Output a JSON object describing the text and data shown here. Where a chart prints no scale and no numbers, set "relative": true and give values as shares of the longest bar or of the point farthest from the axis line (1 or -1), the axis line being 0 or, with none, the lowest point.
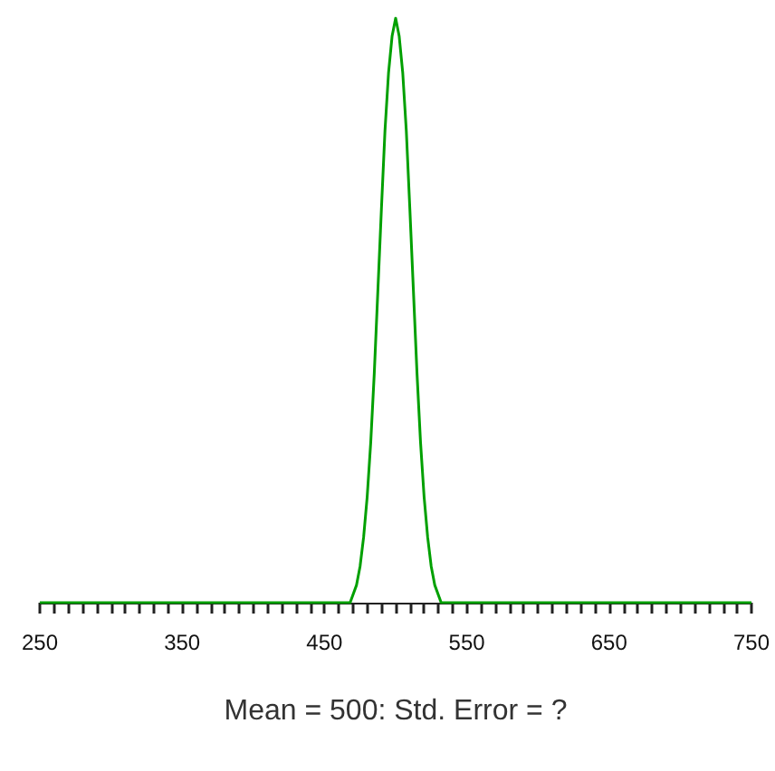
{
  "chart_data": {
    "type": "line",
    "relative": true,
    "xlabel": "Mean = 500: Std. Error = ?",
    "x": [
      250,
      468,
      472.5,
      475,
      477.5,
      480,
      482.5,
      485,
      487.5,
      490,
      492.5,
      495,
      497.5,
      500,
      502.5,
      505,
      507.5,
      510,
      512.5,
      515,
      517.5,
      520,
      522.5,
      525,
      527.5,
      532,
      750
    ],
    "series": [
      {
        "color": "#00a000",
        "values": [
          0,
          0,
          0.03,
          0.062,
          0.112,
          0.181,
          0.274,
          0.393,
          0.533,
          0.673,
          0.807,
          0.906,
          0.969,
          1,
          0.969,
          0.906,
          0.807,
          0.673,
          0.533,
          0.393,
          0.274,
          0.181,
          0.112,
          0.062,
          0.03,
          0,
          0
        ]
      }
    ],
    "xlim": [
      250,
      750
    ],
    "xticks": [
      250,
      {
        "value": 260,
        "label": null
      },
      {
        "value": 270,
        "label": null
      },
      {
        "value": 280,
        "label": null
      },
      {
        "value": 290,
        "label": null
      },
      {
        "value": 300,
        "label": null
      },
      {
        "value": 310,
        "label": null
      },
      {
        "value": 320,
        "label": null
      },
      {
        "value": 330,
        "label": null
      },
      {
        "value": 340,
        "label": null
      },
      350,
      {
        "value": 360,
        "label": null
      },
      {
        "value": 370,
        "label": null
      },
      {
        "value": 380,
        "label": null
      },
      {
        "value": 390,
        "label": null
      },
      {
        "value": 400,
        "label": null
      },
      {
        "value": 410,
        "label": null
      },
      {
        "value": 420,
        "label": null
      },
      {
        "value": 430,
        "label": null
      },
      {
        "value": 440,
        "label": null
      },
      450,
      {
        "value": 460,
        "label": null
      },
      {
        "value": 470,
        "label": null
      },
      {
        "value": 480,
        "label": null
      },
      {
        "value": 490,
        "label": null
      },
      {
        "value": 500,
        "label": null
      },
      {
        "value": 510,
        "label": null
      },
      {
        "value": 520,
        "label": null
      },
      {
        "value": 530,
        "label": null
      },
      {
        "value": 540,
        "label": null
      },
      550,
      {
        "value": 560,
        "label": null
      },
      {
        "value": 570,
        "label": null
      },
      {
        "value": 580,
        "label": null
      },
      {
        "value": 590,
        "label": null
      },
      {
        "value": 600,
        "label": null
      },
      {
        "value": 610,
        "label": null
      },
      {
        "value": 620,
        "label": null
      },
      {
        "value": 630,
        "label": null
      },
      {
        "value": 640,
        "label": null
      },
      650,
      {
        "value": 660,
        "label": null
      },
      {
        "value": 670,
        "label": null
      },
      {
        "value": 680,
        "label": null
      },
      {
        "value": 690,
        "label": null
      },
      {
        "value": 700,
        "label": null
      },
      {
        "value": 710,
        "label": null
      },
      {
        "value": 720,
        "label": null
      },
      {
        "value": 730,
        "label": null
      },
      {
        "value": 740,
        "label": null
      },
      750
    ],
    "grid": false,
    "marker": "none",
    "line_style": "solid"
  }
}
